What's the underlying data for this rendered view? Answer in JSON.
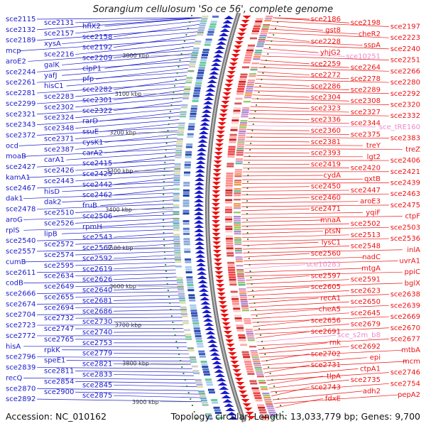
{
  "title": "Sorangium cellulosum 'So ce 56', complete genome",
  "footer": {
    "accession": "Accession: NC_010162",
    "topology": "Topology: circular; Length: 13,033,779 bp; Genes: 9,700"
  },
  "colors": {
    "left_genes": "#1a1acc",
    "right_genes": "#ee1111",
    "pink_genes": "#ee88cc",
    "ruler": "#888888",
    "dots": "#228822"
  },
  "kbp_labels": [
    "3000 kbp",
    "3100 kbp",
    "3200 kbp",
    "3300 kbp",
    "3400 kbp",
    "3500 kbp",
    "3600 kbp",
    "3700 kbp",
    "3800 kbp",
    "3900 kbp"
  ],
  "left_genes": [
    "sce2115",
    "sce2131",
    "hflX2",
    "sce2132",
    "sce2157",
    "sce2158",
    "sce2189",
    "xysA",
    "sce2192",
    "mcp",
    "sce2216",
    "sce2209",
    "aroE2",
    "galK",
    "clpP1",
    "sce2244",
    "yafJ",
    "pfp",
    "sce2261",
    "hisC1",
    "sce2282",
    "sce2281",
    "sce2283",
    "sce2301",
    "sce2299",
    "sce2302",
    "sce2322",
    "sce2321",
    "sce2324",
    "rarD",
    "sce2343",
    "sce2348",
    "ssuE",
    "sce2372",
    "sce2371",
    "cysK1",
    "ocd",
    "sce2387",
    "carA2",
    "moaB",
    "carA1",
    "sce2415",
    "sce2427",
    "sce2426",
    "sce2425",
    "kamA1",
    "sce2443",
    "sce2442",
    "sce2467",
    "hisD",
    "sce2462",
    "dak1",
    "dak2",
    "fruB",
    "sce2478",
    "sce2510",
    "sce2506",
    "aroG",
    "sce2526",
    "rpmH",
    "rplS",
    "lipB",
    "sce2543",
    "sce2540",
    "sce2572",
    "sce2567",
    "sce2557",
    "sce2574",
    "sce2592",
    "cumB",
    "sce2595",
    "sce2619",
    "sce2611",
    "sce2634",
    "sce2626",
    "codB",
    "sce2649",
    "sce2640",
    "sce2666",
    "sce2655",
    "sce2681",
    "sce2674",
    "sce2694",
    "sce2686",
    "sce2704",
    "sce2732",
    "sce2730",
    "sce2723",
    "sce2747",
    "sce2740",
    "sce2772",
    "sce2765",
    "sce2753",
    "hisA",
    "rpkK",
    "sce2779",
    "sce2796",
    "speE1",
    "sce2821",
    "sce2839",
    "sce2811",
    "sce2833",
    "recQ",
    "sce2854",
    "sce2845",
    "sce2870",
    "sce2900",
    "sce2875",
    "sce2892"
  ],
  "right_genes": [
    "sce2186",
    "sce2198",
    "sce2197",
    "gst8",
    "cheR2",
    "sce2223",
    "sce2228",
    "sspA",
    "sce2240",
    "yhjG2",
    "sce10251",
    "sce2251",
    "sce2259",
    "sce2264",
    "sce2266",
    "sce2272",
    "sce2278",
    "sce2280",
    "sce2286",
    "sce2289",
    "sce2292",
    "sce2304",
    "sce2308",
    "sce2320",
    "sce2323",
    "sce2327",
    "sce2332",
    "sce2336",
    "sce2344",
    "sce_tRE160",
    "sce2360",
    "sce2375",
    "sce2383",
    "sce2381",
    "treY",
    "treZ",
    "sce2393",
    "lgt2",
    "sce2406",
    "sce2419",
    "sce2420",
    "sce2421",
    "cydA",
    "qxtB",
    "sce2439",
    "sce2450",
    "sce2447",
    "sce2463",
    "sce2460",
    "aroE3",
    "sce2475",
    "sce2471",
    "yqiF",
    "ctpF",
    "mnaA",
    "sce2502",
    "sce2503",
    "ptsN",
    "sce2513",
    "sce2536",
    "lysC1",
    "sce2548",
    "inlA",
    "sce2560",
    "nadC",
    "uvrA1",
    "sce10283",
    "mtgA",
    "ppiC",
    "sce2597",
    "sce2591",
    "bglX",
    "sce2605",
    "sce2623",
    "sce2638",
    "recA1",
    "sce2650",
    "sce2639",
    "cheA5",
    "sce2645",
    "sce2669",
    "sce2656",
    "sce2679",
    "sce2670",
    "sce2691",
    "sce_s2m_b8",
    "sce2677",
    "rnk",
    "sce2692",
    "mtbA",
    "sce2702",
    "epi",
    "mcm",
    "sce2731",
    "ctpA1",
    "sce2746",
    "tlpA",
    "sce2735",
    "sce2754",
    "sce2743",
    "adh2",
    "pepA2",
    "fdxE"
  ],
  "pink_right_genes": [
    "sce10251",
    "sce_tRE160",
    "sce10283",
    "sce_s2m_b8"
  ]
}
